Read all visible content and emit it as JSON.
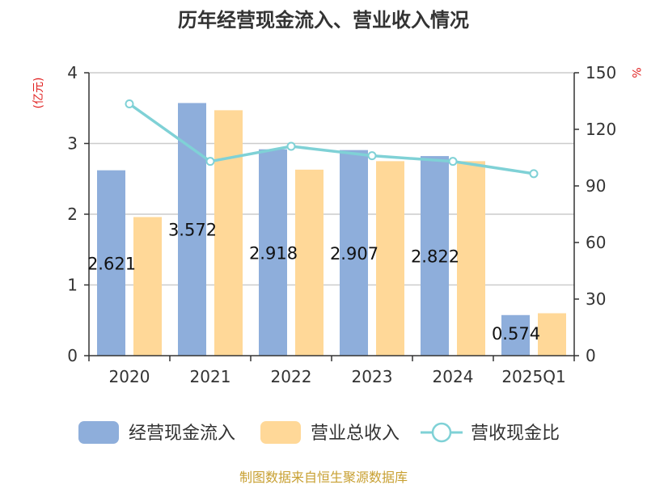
{
  "chart_data": {
    "type": "bar",
    "title": "历年经营现金流入、营业收入情况",
    "categories": [
      "2020",
      "2021",
      "2022",
      "2023",
      "2024",
      "2025Q1"
    ],
    "left_axis": {
      "unit_label": "(亿元)",
      "ylim": [
        0,
        4
      ],
      "ticks": [
        "0",
        "1",
        "2",
        "3",
        "4"
      ]
    },
    "right_axis": {
      "unit_label": "%",
      "ylim": [
        0,
        150
      ],
      "ticks": [
        "0",
        "30",
        "60",
        "90",
        "120",
        "150"
      ]
    },
    "series": [
      {
        "name": "经营现金流入",
        "kind": "bar",
        "axis": "left",
        "color": "#8eaedb",
        "values": [
          2.621,
          3.572,
          2.918,
          2.907,
          2.822,
          0.574
        ],
        "labels": [
          "2.621",
          "3.572",
          "2.918",
          "2.907",
          "2.822",
          "0.574"
        ]
      },
      {
        "name": "营业总收入",
        "kind": "bar",
        "axis": "left",
        "color": "#ffd898",
        "values": [
          1.96,
          3.47,
          2.63,
          2.75,
          2.75,
          0.6
        ]
      },
      {
        "name": "营收现金比",
        "kind": "line",
        "axis": "right",
        "color": "#7fd1d6",
        "values": [
          133.5,
          103,
          111,
          106,
          103,
          96.5
        ]
      }
    ],
    "grid": true,
    "legend_position": "bottom"
  },
  "source_text": "制图数据来自恒生聚源数据库"
}
